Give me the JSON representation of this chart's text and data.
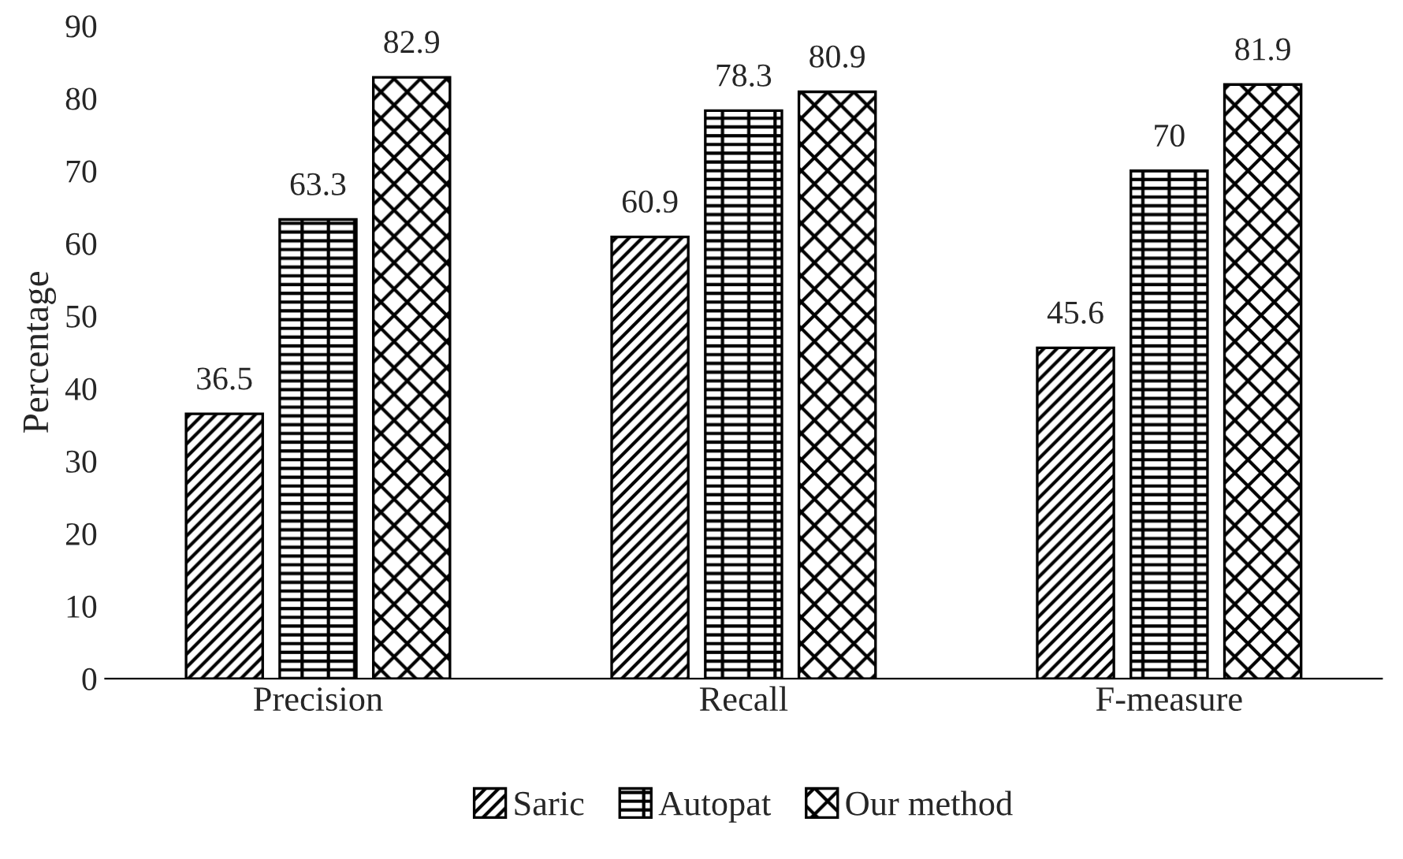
{
  "chart_data": {
    "type": "bar",
    "ylabel": "Percentage",
    "categories": [
      "Precision",
      "Recall",
      "F-measure"
    ],
    "series": [
      {
        "name": "Saric",
        "color": "#000000",
        "values": [
          36.5,
          60.9,
          45.6
        ]
      },
      {
        "name": "Autopat",
        "color": "#000000",
        "values": [
          63.3,
          78.3,
          70
        ]
      },
      {
        "name": "Our method",
        "color": "#000000",
        "values": [
          82.9,
          80.9,
          81.9
        ]
      }
    ],
    "ylim": [
      0,
      90
    ],
    "yticks": [
      0,
      10,
      20,
      30,
      40,
      50,
      60,
      70,
      80,
      90
    ],
    "data_labels": true,
    "legend": "bottom",
    "grid": false
  }
}
